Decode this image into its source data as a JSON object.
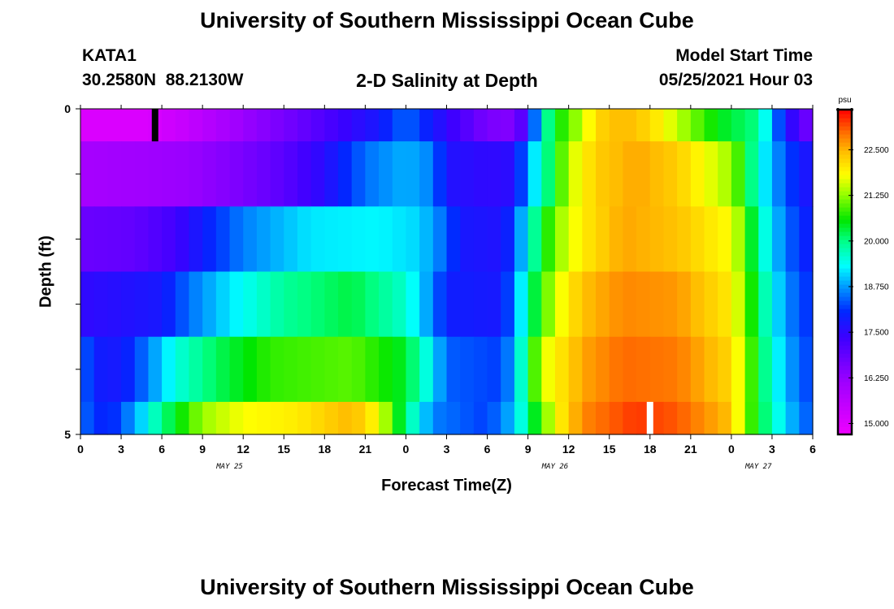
{
  "header": {
    "title_top": "University of Southern Mississippi Ocean Cube",
    "title_bottom": "University of Southern Mississippi Ocean Cube",
    "station_id": "KATA1",
    "station_coords": "30.2580N  88.2130W",
    "chart_title": "2-D Salinity at Depth",
    "model_start_label": "Model Start Time",
    "model_start_value": "05/25/2021 Hour 03"
  },
  "chart_data": {
    "type": "heatmap",
    "title": "2-D Salinity at Depth",
    "xlabel": "Forecast Time(Z)",
    "ylabel": "Depth (ft)",
    "x_tick_labels": [
      "0",
      "3",
      "6",
      "9",
      "12",
      "15",
      "18",
      "21",
      "0",
      "3",
      "6",
      "9",
      "12",
      "15",
      "18",
      "21",
      "0",
      "3",
      "6"
    ],
    "x_date_labels": [
      {
        "text": "MAY 25",
        "at_hour": 11
      },
      {
        "text": "MAY 26",
        "at_hour": 35
      },
      {
        "text": "MAY 27",
        "at_hour": 50
      }
    ],
    "xlim_hours": [
      0,
      54
    ],
    "y_tick_labels": [
      "0",
      "5"
    ],
    "ylim": [
      0,
      5
    ],
    "colorbar": {
      "unit": "psu",
      "min": 14.7,
      "max": 23.6,
      "tick_labels": [
        "22.500",
        "21.250",
        "20.000",
        "18.750",
        "17.500",
        "16.250",
        "15.000"
      ],
      "tick_values": [
        22.5,
        21.25,
        20.0,
        18.75,
        17.5,
        16.25,
        15.0
      ]
    },
    "layer_depths_ft": [
      [
        0,
        0.5
      ],
      [
        0.5,
        1.5
      ],
      [
        1.5,
        2.5
      ],
      [
        2.5,
        3.5
      ],
      [
        3.5,
        4.5
      ],
      [
        4.5,
        5
      ]
    ],
    "layers": [
      {
        "depth_range": "0-0.5",
        "keyframes": [
          [
            0,
            15.1
          ],
          [
            5,
            15.1
          ],
          [
            8,
            15.5
          ],
          [
            12,
            16.2
          ],
          [
            16,
            16.8
          ],
          [
            20,
            17.5
          ],
          [
            22,
            17.8
          ],
          [
            24,
            18.5
          ],
          [
            26,
            17.8
          ],
          [
            30,
            16.6
          ],
          [
            32,
            16.5
          ],
          [
            33,
            17.5
          ],
          [
            34,
            19.5
          ],
          [
            35,
            20.5
          ],
          [
            37,
            21.5
          ],
          [
            38,
            22.2
          ],
          [
            40,
            22.5
          ],
          [
            42,
            22.2
          ],
          [
            44,
            21.5
          ],
          [
            47,
            20.5
          ],
          [
            50,
            20.0
          ],
          [
            51,
            18.8
          ],
          [
            52,
            17.8
          ],
          [
            54,
            16.5
          ]
        ]
      },
      {
        "depth_range": "0.5-1.5",
        "keyframes": [
          [
            0,
            16.0
          ],
          [
            8,
            16.2
          ],
          [
            12,
            16.6
          ],
          [
            15,
            17.0
          ],
          [
            18,
            17.6
          ],
          [
            21,
            18.5
          ],
          [
            24,
            18.9
          ],
          [
            26,
            18.6
          ],
          [
            27,
            17.7
          ],
          [
            30,
            17.5
          ],
          [
            32,
            17.6
          ],
          [
            33,
            18.8
          ],
          [
            35,
            20.5
          ],
          [
            36,
            21.5
          ],
          [
            38,
            22.3
          ],
          [
            41,
            22.6
          ],
          [
            44,
            22.3
          ],
          [
            48,
            21.3
          ],
          [
            49,
            20.5
          ],
          [
            50,
            19.5
          ],
          [
            52,
            18.3
          ],
          [
            54,
            17.6
          ]
        ]
      },
      {
        "depth_range": "1.5-2.5",
        "keyframes": [
          [
            0,
            16.8
          ],
          [
            4,
            16.9
          ],
          [
            7,
            17.3
          ],
          [
            9,
            17.9
          ],
          [
            12,
            18.6
          ],
          [
            17,
            19.2
          ],
          [
            22,
            19.3
          ],
          [
            25,
            19.1
          ],
          [
            27,
            18.4
          ],
          [
            28,
            17.8
          ],
          [
            31,
            17.7
          ],
          [
            32,
            18.2
          ],
          [
            33,
            19.5
          ],
          [
            35,
            21.2
          ],
          [
            37,
            22.0
          ],
          [
            40,
            22.6
          ],
          [
            44,
            22.4
          ],
          [
            48,
            21.8
          ],
          [
            49,
            21.0
          ],
          [
            50,
            19.8
          ],
          [
            52,
            18.5
          ],
          [
            54,
            17.8
          ]
        ]
      },
      {
        "depth_range": "2.5-3.5",
        "keyframes": [
          [
            0,
            17.5
          ],
          [
            6,
            17.8
          ],
          [
            8,
            18.5
          ],
          [
            11,
            19.2
          ],
          [
            15,
            19.9
          ],
          [
            20,
            20.3
          ],
          [
            24,
            19.6
          ],
          [
            26,
            18.6
          ],
          [
            27,
            17.9
          ],
          [
            31,
            17.8
          ],
          [
            32,
            18.6
          ],
          [
            33,
            19.9
          ],
          [
            35,
            21.6
          ],
          [
            37,
            22.4
          ],
          [
            40,
            22.8
          ],
          [
            44,
            22.7
          ],
          [
            48,
            22.0
          ],
          [
            49,
            21.2
          ],
          [
            50,
            20.1
          ],
          [
            52,
            18.7
          ],
          [
            54,
            18.0
          ]
        ]
      },
      {
        "depth_range": "3.5-4.5",
        "keyframes": [
          [
            0,
            18.6
          ],
          [
            1,
            17.9
          ],
          [
            3,
            17.8
          ],
          [
            5,
            18.6
          ],
          [
            7,
            19.5
          ],
          [
            10,
            20.2
          ],
          [
            14,
            20.8
          ],
          [
            20,
            21.0
          ],
          [
            24,
            20.4
          ],
          [
            26,
            19.2
          ],
          [
            27,
            18.4
          ],
          [
            31,
            18.2
          ],
          [
            32,
            18.9
          ],
          [
            33,
            20.3
          ],
          [
            34,
            21.6
          ],
          [
            37,
            22.6
          ],
          [
            40,
            23.0
          ],
          [
            44,
            22.9
          ],
          [
            48,
            22.2
          ],
          [
            49,
            21.4
          ],
          [
            50,
            20.3
          ],
          [
            52,
            18.9
          ],
          [
            54,
            18.1
          ]
        ]
      },
      {
        "depth_range": "4.5-5",
        "keyframes": [
          [
            0,
            18.5
          ],
          [
            2,
            17.9
          ],
          [
            4,
            18.8
          ],
          [
            6,
            20.0
          ],
          [
            9,
            21.3
          ],
          [
            12,
            21.8
          ],
          [
            16,
            22.0
          ],
          [
            20,
            22.5
          ],
          [
            22,
            21.8
          ],
          [
            24,
            20.0
          ],
          [
            26,
            18.6
          ],
          [
            30,
            18.2
          ],
          [
            32,
            19.0
          ],
          [
            33,
            20.0
          ],
          [
            35,
            21.8
          ],
          [
            37,
            22.8
          ],
          [
            41,
            23.3
          ],
          [
            44,
            23.1
          ],
          [
            48,
            22.4
          ],
          [
            49,
            21.2
          ],
          [
            51,
            19.7
          ],
          [
            53,
            18.6
          ],
          [
            54,
            18.3
          ]
        ]
      }
    ],
    "markers": [
      {
        "color": "#000000",
        "hour": 5.5,
        "depth_range": [
          0,
          0.5
        ]
      },
      {
        "color": "#ffffff",
        "hour": 42,
        "depth_range": [
          4.5,
          5
        ]
      }
    ]
  }
}
